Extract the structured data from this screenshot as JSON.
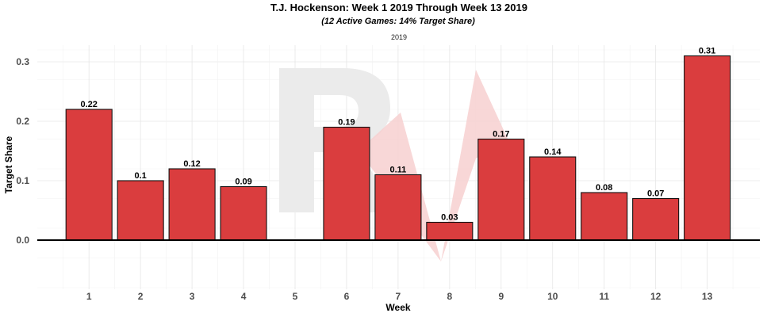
{
  "chart_data": {
    "type": "bar",
    "title": "T.J. Hockenson: Week 1 2019 Through Week 13 2019",
    "subtitle": "(12 Active Games: 14% Target Share)",
    "facet_label": "2019",
    "xlabel": "Week",
    "ylabel": "Target Share",
    "categories": [
      "1",
      "2",
      "3",
      "4",
      "5",
      "6",
      "7",
      "8",
      "9",
      "10",
      "11",
      "12",
      "13"
    ],
    "values": [
      0.22,
      0.1,
      0.12,
      0.09,
      null,
      0.19,
      0.11,
      0.03,
      0.17,
      0.14,
      0.08,
      0.07,
      0.31
    ],
    "data_labels": [
      "0.22",
      "0.1",
      "0.12",
      "0.09",
      "",
      "0.19",
      "0.11",
      "0.03",
      "0.17",
      "0.14",
      "0.08",
      "0.07",
      "0.31"
    ],
    "y_ticks": [
      "0.0",
      "0.1",
      "0.2",
      "0.3"
    ],
    "ylim": [
      -0.08,
      0.33
    ],
    "grid": true,
    "legend": "none",
    "colors": {
      "bar": "#da3d3e",
      "bar_outline": "#111111",
      "watermark_grey": "#ebebeb",
      "watermark_red": "#f7d0d0"
    }
  }
}
